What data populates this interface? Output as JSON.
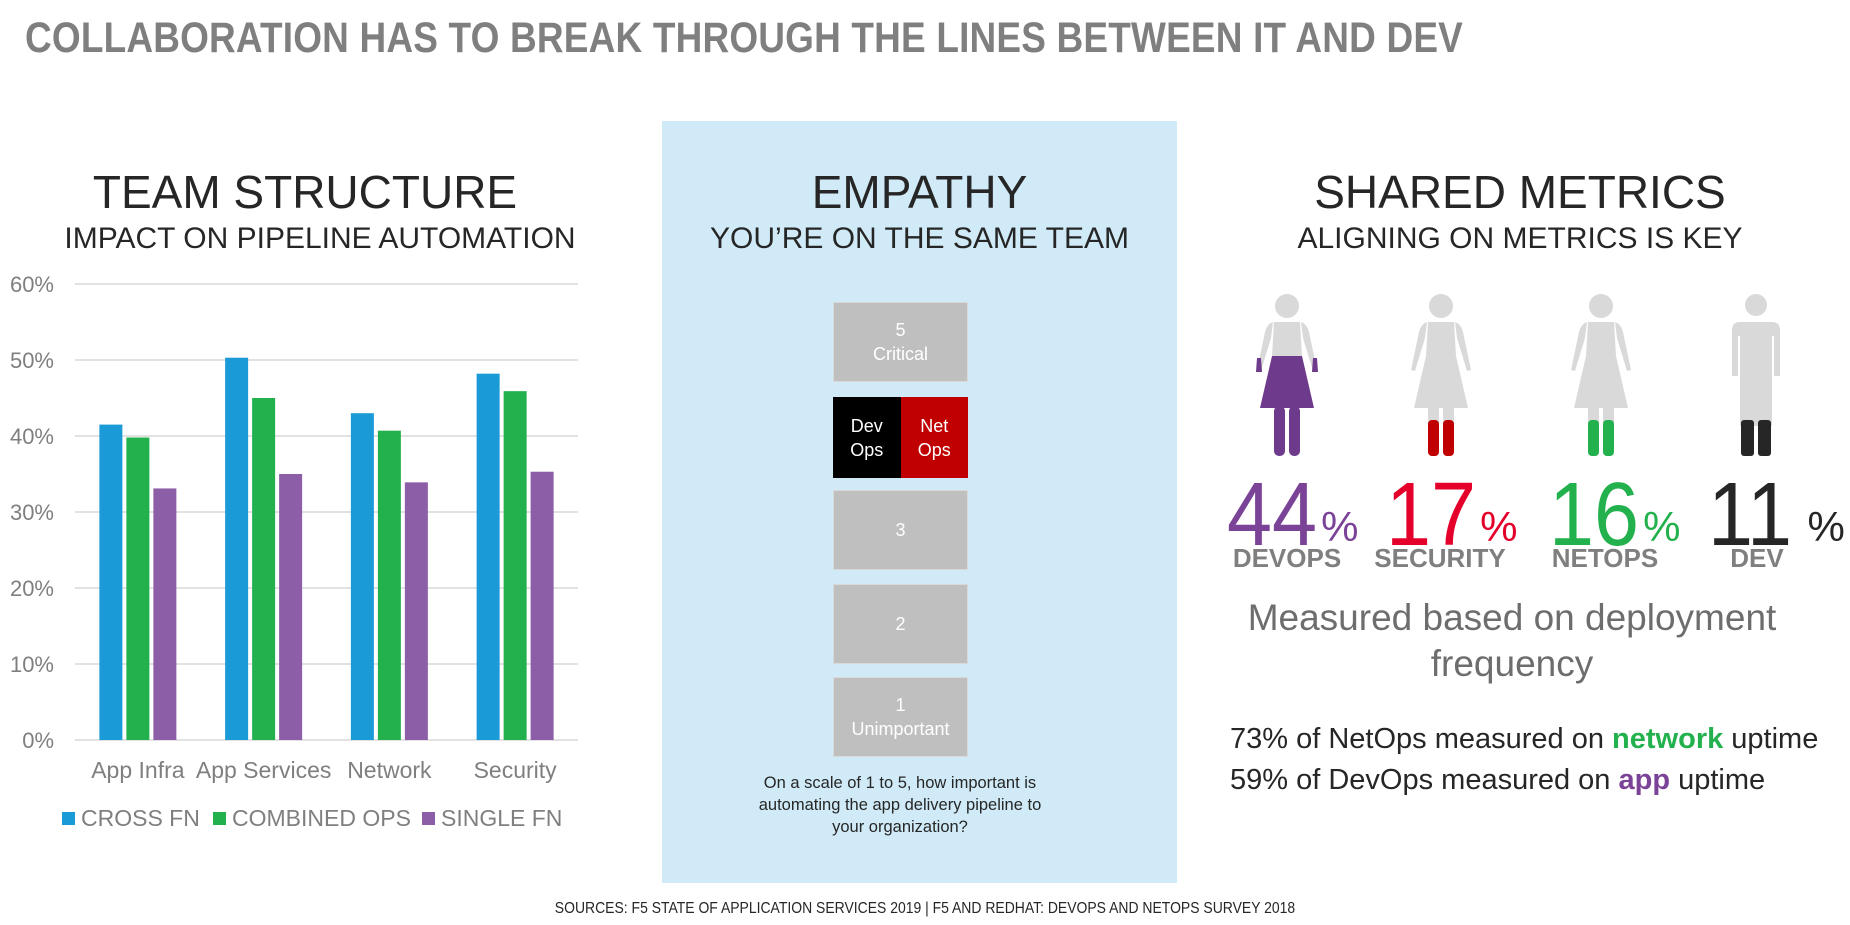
{
  "title": "COLLABORATION HAS TO BREAK THROUGH THE LINES BETWEEN IT AND DEV",
  "team_structure": {
    "title": "TEAM STRUCTURE",
    "subtitle": "IMPACT ON PIPELINE AUTOMATION"
  },
  "empathy": {
    "title": "EMPATHY",
    "subtitle": "YOU’RE ON THE SAME TEAM",
    "scale": {
      "level5": [
        "5",
        "Critical"
      ],
      "dev_ops": [
        "Dev",
        "Ops"
      ],
      "net_ops": [
        "Net",
        "Ops"
      ],
      "level3": "3",
      "level2": "2",
      "level1": [
        "1",
        "Unimportant"
      ]
    },
    "question": [
      "On a scale of 1 to 5, how important is",
      "automating the app delivery pipeline to",
      "your organization?"
    ],
    "colors": {
      "dev_ops": "#000000",
      "net_ops": "#c00000",
      "neutral": "#bfbfbf"
    }
  },
  "shared_metrics": {
    "title": "SHARED METRICS",
    "subtitle": "ALIGNING ON METRICS IS KEY",
    "groups": [
      {
        "value": "44",
        "sign": "%",
        "label": "DEVOPS",
        "color": "#7b4397",
        "icon": "woman-icon-purple"
      },
      {
        "value": "17",
        "sign": "%",
        "label": "SECURITY",
        "color": "#e4002b",
        "icon": "woman-icon-red"
      },
      {
        "value": "16",
        "sign": "%",
        "label": "NETOPS",
        "color": "#22b14c",
        "icon": "woman-icon-green"
      },
      {
        "value": "11",
        "sign": "%",
        "label": "DEV",
        "color": "#262626",
        "icon": "man-icon-dark"
      }
    ],
    "measured": [
      "Measured based on deployment",
      "frequency"
    ],
    "stat1": {
      "before": "73% of NetOps measured on ",
      "highlight": "network",
      "after": " uptime"
    },
    "stat2": {
      "before": "59% of DevOps measured on ",
      "highlight": "app",
      "after": " uptime"
    }
  },
  "sources": "SOURCES: F5 STATE OF APPLICATION SERVICES 2019 | F5 AND REDHAT: DEVOPS AND NETOPS SURVEY 2018",
  "chart_data": {
    "type": "bar",
    "categories": [
      "App Infra",
      "App Services",
      "Network",
      "Security"
    ],
    "series": [
      {
        "name": "CROSS FN",
        "values": [
          41.5,
          50.3,
          43,
          48.2
        ],
        "color": "#1a9ad6"
      },
      {
        "name": "COMBINED OPS",
        "values": [
          39.8,
          45,
          40.7,
          45.9
        ],
        "color": "#22b14c"
      },
      {
        "name": "SINGLE FN",
        "values": [
          33.1,
          35,
          33.9,
          35.3
        ],
        "color": "#8c5ea8"
      }
    ],
    "yticks": [
      "0%",
      "10%",
      "20%",
      "30%",
      "40%",
      "50%",
      "60%"
    ],
    "ylim": [
      0,
      60
    ],
    "grid": true,
    "legend": "bottom"
  }
}
